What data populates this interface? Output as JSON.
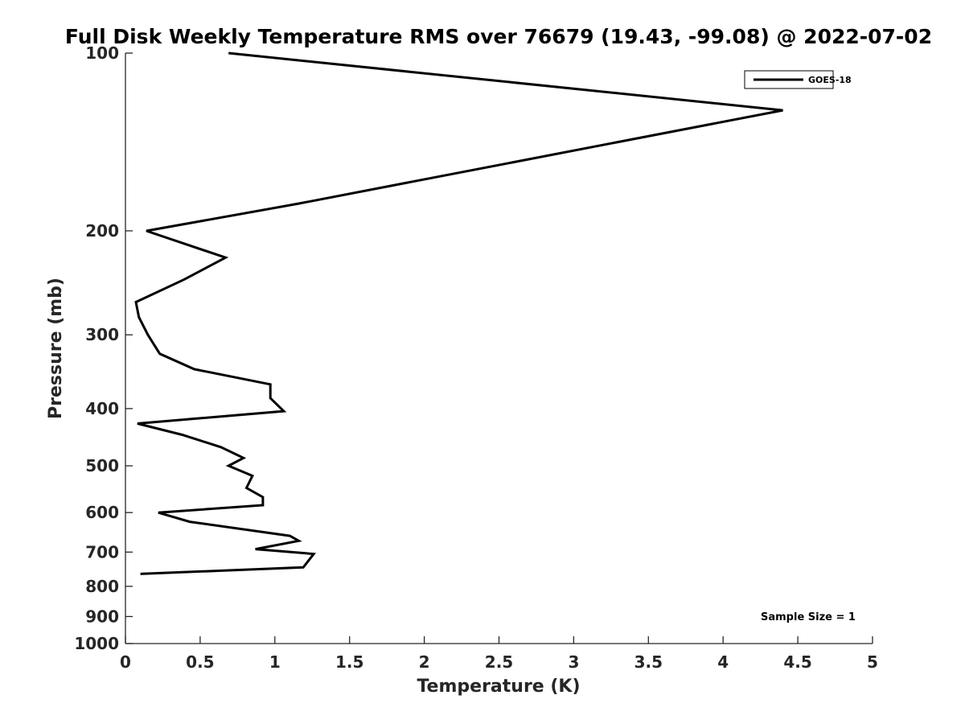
{
  "chart_data": {
    "type": "line",
    "title": "Full Disk Weekly Temperature RMS over 76679 (19.43, -99.08) @ 2022-07-02",
    "xlabel": "Temperature (K)",
    "ylabel": "Pressure (mb)",
    "xlim": [
      0,
      5
    ],
    "ylim": [
      100,
      1000
    ],
    "yscale": "log",
    "y_reversed": true,
    "xticks": [
      0,
      0.5,
      1,
      1.5,
      2,
      2.5,
      3,
      3.5,
      4,
      4.5,
      5
    ],
    "xtick_labels": [
      "0",
      "0.5",
      "1",
      "1.5",
      "2",
      "2.5",
      "3",
      "3.5",
      "4",
      "4.5",
      "5"
    ],
    "yticks": [
      100,
      200,
      300,
      400,
      500,
      600,
      700,
      800,
      900,
      1000
    ],
    "ytick_labels": [
      "100",
      "200",
      "300",
      "400",
      "500",
      "600",
      "700",
      "800",
      "900",
      "1000"
    ],
    "legend": {
      "placement": "top-right",
      "entries": [
        "GOES-18"
      ]
    },
    "annotation": "Sample Size = 1",
    "grid": false,
    "series": [
      {
        "name": "GOES-18",
        "color": "#000000",
        "points": [
          {
            "x": 0.69,
            "y": 100
          },
          {
            "x": 4.4,
            "y": 125
          },
          {
            "x": 1.15,
            "y": 180
          },
          {
            "x": 0.14,
            "y": 200
          },
          {
            "x": 0.67,
            "y": 222
          },
          {
            "x": 0.39,
            "y": 242
          },
          {
            "x": 0.07,
            "y": 264
          },
          {
            "x": 0.09,
            "y": 280
          },
          {
            "x": 0.15,
            "y": 300
          },
          {
            "x": 0.23,
            "y": 323
          },
          {
            "x": 0.46,
            "y": 343
          },
          {
            "x": 0.97,
            "y": 364
          },
          {
            "x": 0.97,
            "y": 384
          },
          {
            "x": 1.06,
            "y": 404
          },
          {
            "x": 0.08,
            "y": 424
          },
          {
            "x": 0.38,
            "y": 443
          },
          {
            "x": 0.64,
            "y": 465
          },
          {
            "x": 0.79,
            "y": 485
          },
          {
            "x": 0.69,
            "y": 500
          },
          {
            "x": 0.85,
            "y": 520
          },
          {
            "x": 0.81,
            "y": 545
          },
          {
            "x": 0.92,
            "y": 565
          },
          {
            "x": 0.92,
            "y": 583
          },
          {
            "x": 0.22,
            "y": 600
          },
          {
            "x": 0.43,
            "y": 622
          },
          {
            "x": 1.1,
            "y": 657
          },
          {
            "x": 1.16,
            "y": 670
          },
          {
            "x": 0.87,
            "y": 692
          },
          {
            "x": 1.26,
            "y": 705
          },
          {
            "x": 1.19,
            "y": 743
          },
          {
            "x": 0.1,
            "y": 762
          }
        ]
      }
    ]
  }
}
